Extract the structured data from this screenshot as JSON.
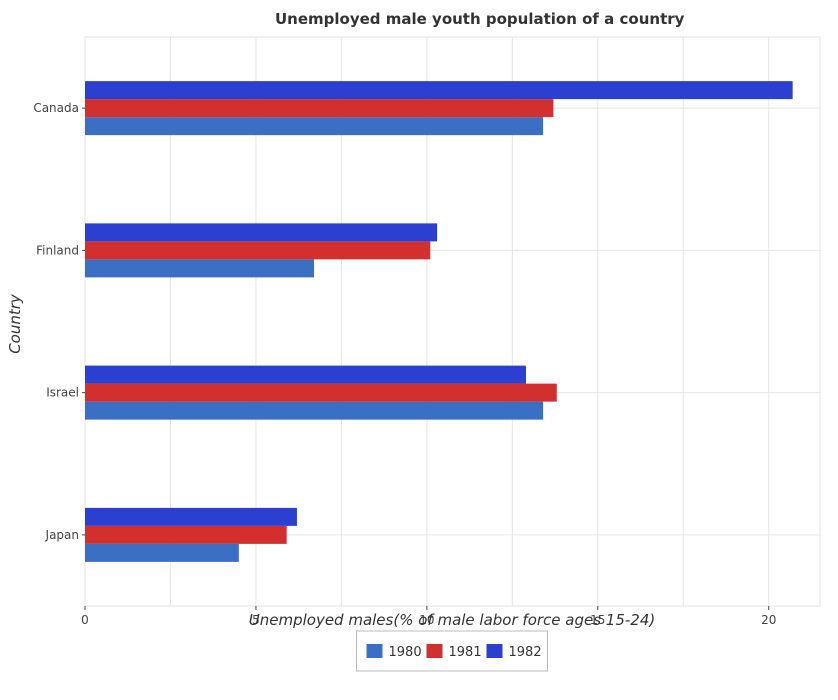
{
  "chart_data": {
    "type": "bar",
    "orientation": "horizontal",
    "title": "Unemployed male youth population of a country",
    "xlabel": "Unemployed males(% of male labor force ages 15-24)",
    "ylabel": "Country",
    "categories": [
      "Canada",
      "Finland",
      "Israel",
      "Japan"
    ],
    "series": [
      {
        "name": "1980",
        "color": "#3a6fc3",
        "values": [
          13.4,
          6.7,
          13.4,
          4.5
        ]
      },
      {
        "name": "1981",
        "color": "#d22f2f",
        "values": [
          13.7,
          10.1,
          13.8,
          5.9
        ]
      },
      {
        "name": "1982",
        "color": "#2b3fd1",
        "values": [
          20.7,
          10.3,
          12.9,
          6.2
        ]
      }
    ],
    "xlim": [
      0,
      21.5
    ],
    "xticks": [
      0,
      5,
      10,
      15,
      20
    ],
    "grid": true,
    "legend_position": "bottom-center"
  }
}
